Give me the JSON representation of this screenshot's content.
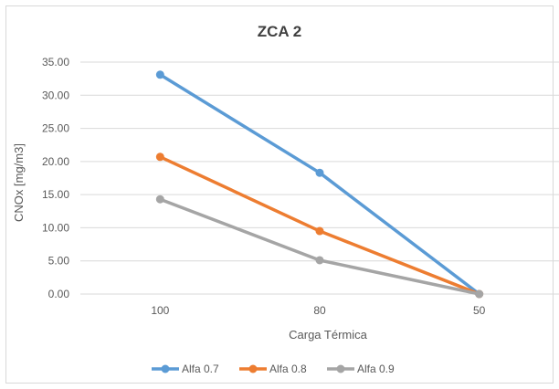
{
  "chart_data": {
    "type": "line",
    "title": "ZCA 2",
    "xlabel": "Carga Térmica",
    "ylabel": "CNOx [mg/m3]",
    "categories": [
      "100",
      "80",
      "50"
    ],
    "ylim": [
      0,
      35
    ],
    "yticks": [
      "0.00",
      "5.00",
      "10.00",
      "15.00",
      "20.00",
      "25.00",
      "30.00",
      "35.00"
    ],
    "grid": true,
    "legend": "bottom",
    "series": [
      {
        "name": "Alfa 0.7",
        "values": [
          33.1,
          18.3,
          0.0
        ],
        "color": "#5b9bd5"
      },
      {
        "name": "Alfa 0.8",
        "values": [
          20.7,
          9.5,
          0.0
        ],
        "color": "#ed7d31"
      },
      {
        "name": "Alfa 0.9",
        "values": [
          14.3,
          5.1,
          0.0
        ],
        "color": "#a5a5a5"
      }
    ]
  }
}
